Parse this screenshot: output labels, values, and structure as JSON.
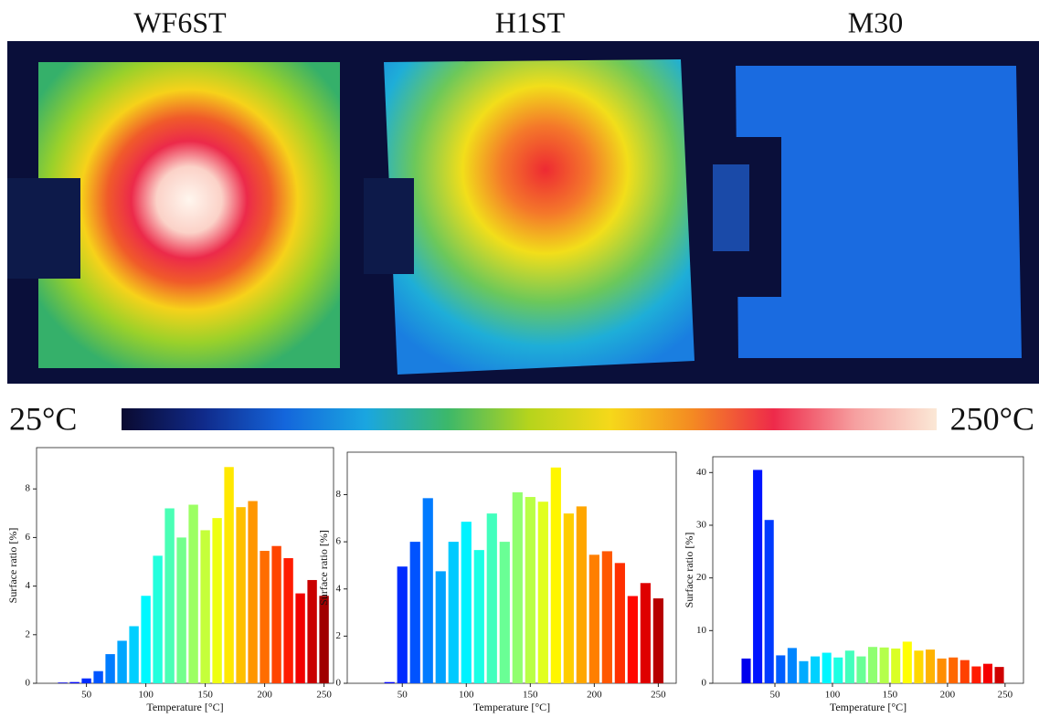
{
  "images": {
    "titles": [
      "WF6ST",
      "H1ST",
      "M30"
    ]
  },
  "colorbar": {
    "min_label": "25°C",
    "max_label": "250°C"
  },
  "chart_data": [
    {
      "type": "bar",
      "xlabel": "Temperature [°C]",
      "ylabel": "Surface ratio [%]",
      "colormap": "jet",
      "x": [
        30,
        40,
        50,
        60,
        70,
        80,
        90,
        100,
        110,
        120,
        130,
        140,
        150,
        160,
        170,
        180,
        190,
        200,
        210,
        220,
        230,
        240,
        250
      ],
      "values": [
        0.03,
        0.05,
        0.2,
        0.5,
        1.2,
        1.75,
        2.35,
        3.6,
        5.25,
        7.2,
        6.0,
        7.35,
        6.3,
        6.8,
        8.9,
        7.25,
        7.5,
        5.45,
        5.65,
        5.15,
        3.7,
        4.25,
        3.6
      ],
      "xlim": [
        8,
        258
      ],
      "ylim": [
        0,
        9.7
      ],
      "xticks": [
        50,
        100,
        150,
        200,
        250
      ],
      "yticks": [
        0,
        2,
        4,
        6,
        8
      ]
    },
    {
      "type": "bar",
      "xlabel": "Temperature [°C]",
      "ylabel": "Surface ratio [%]",
      "colormap": "jet",
      "x": [
        40,
        50,
        60,
        70,
        80,
        90,
        100,
        110,
        120,
        130,
        140,
        150,
        160,
        170,
        180,
        190,
        200,
        210,
        220,
        230,
        240,
        250
      ],
      "values": [
        0.05,
        4.95,
        6.0,
        7.85,
        4.75,
        6.0,
        6.85,
        5.65,
        7.2,
        6.0,
        8.1,
        7.9,
        7.7,
        9.15,
        7.2,
        7.5,
        5.45,
        5.6,
        5.1,
        3.7,
        4.25,
        3.6
      ],
      "xlim": [
        7,
        264
      ],
      "ylim": [
        0,
        9.8
      ],
      "xticks": [
        50,
        100,
        150,
        200,
        250
      ],
      "yticks": [
        0,
        2,
        4,
        6,
        8
      ]
    },
    {
      "type": "bar",
      "xlabel": "Temperature [°C]",
      "ylabel": "Surface ratio [%]",
      "colormap": "jet",
      "x": [
        25,
        35,
        45,
        55,
        65,
        75,
        85,
        95,
        105,
        115,
        125,
        135,
        145,
        155,
        165,
        175,
        185,
        195,
        205,
        215,
        225,
        235,
        245
      ],
      "values": [
        4.7,
        40.5,
        31,
        5.3,
        6.7,
        4.2,
        5.1,
        5.8,
        4.9,
        6.2,
        5.1,
        6.9,
        6.8,
        6.6,
        7.9,
        6.2,
        6.4,
        4.7,
        4.9,
        4.4,
        3.2,
        3.7,
        3.1
      ],
      "xlim": [
        -4,
        266
      ],
      "ylim": [
        0,
        43
      ],
      "xticks": [
        50,
        100,
        150,
        200,
        250
      ],
      "yticks": [
        0,
        10,
        20,
        30,
        40
      ]
    }
  ]
}
